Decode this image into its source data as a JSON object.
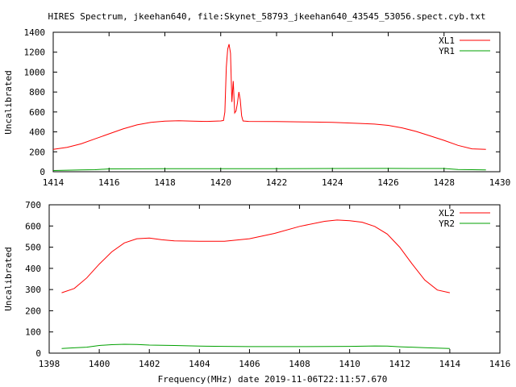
{
  "title": "HIRES Spectrum, jkeehan640, file:Skynet_58793_jkeehan640_43545_53056.spect.cyb.txt",
  "xlabel": "Frequency(MHz) date 2019-11-06T22:11:57.670",
  "colors": {
    "XL": "#ff0000",
    "YR": "#00a000"
  },
  "chart_data": [
    {
      "type": "line",
      "title": "",
      "xlabel": "",
      "ylabel": "Uncalibrated",
      "xlim": [
        1414,
        1430
      ],
      "ylim": [
        0,
        1400
      ],
      "xticks": [
        "1414",
        "1416",
        "1418",
        "1420",
        "1422",
        "1424",
        "1426",
        "1428",
        "1430"
      ],
      "yticks": [
        "0",
        "200",
        "400",
        "600",
        "800",
        "1000",
        "1200",
        "1400"
      ],
      "legend_position": "top-right",
      "grid": false,
      "series": [
        {
          "name": "XL1",
          "color": "#ff0000",
          "points": [
            [
              1414.0,
              225
            ],
            [
              1414.5,
              245
            ],
            [
              1415.0,
              280
            ],
            [
              1415.5,
              330
            ],
            [
              1416.0,
              380
            ],
            [
              1416.5,
              430
            ],
            [
              1417.0,
              470
            ],
            [
              1417.5,
              495
            ],
            [
              1418.0,
              508
            ],
            [
              1418.5,
              512
            ],
            [
              1419.0,
              508
            ],
            [
              1419.5,
              505
            ],
            [
              1420.0,
              510
            ],
            [
              1420.1,
              515
            ],
            [
              1420.15,
              600
            ],
            [
              1420.2,
              1050
            ],
            [
              1420.25,
              1230
            ],
            [
              1420.3,
              1280
            ],
            [
              1420.35,
              1190
            ],
            [
              1420.4,
              700
            ],
            [
              1420.45,
              910
            ],
            [
              1420.5,
              590
            ],
            [
              1420.55,
              610
            ],
            [
              1420.6,
              690
            ],
            [
              1420.65,
              800
            ],
            [
              1420.7,
              720
            ],
            [
              1420.75,
              560
            ],
            [
              1420.8,
              510
            ],
            [
              1421.0,
              505
            ],
            [
              1422.0,
              503
            ],
            [
              1423.0,
              500
            ],
            [
              1424.0,
              495
            ],
            [
              1425.0,
              485
            ],
            [
              1425.5,
              478
            ],
            [
              1426.0,
              465
            ],
            [
              1426.5,
              440
            ],
            [
              1427.0,
              405
            ],
            [
              1427.5,
              360
            ],
            [
              1428.0,
              315
            ],
            [
              1428.5,
              265
            ],
            [
              1429.0,
              230
            ],
            [
              1429.5,
              225
            ]
          ]
        },
        {
          "name": "YR1",
          "color": "#00a000",
          "points": [
            [
              1414.0,
              12
            ],
            [
              1415.0,
              18
            ],
            [
              1415.5,
              20
            ],
            [
              1416.0,
              28
            ],
            [
              1418.0,
              30
            ],
            [
              1420.0,
              30
            ],
            [
              1422.0,
              31
            ],
            [
              1424.0,
              32
            ],
            [
              1426.0,
              33
            ],
            [
              1428.0,
              32
            ],
            [
              1428.5,
              22
            ],
            [
              1429.5,
              18
            ]
          ]
        }
      ]
    },
    {
      "type": "line",
      "title": "",
      "xlabel": "Frequency(MHz) date 2019-11-06T22:11:57.670",
      "ylabel": "Uncalibrated",
      "xlim": [
        1398,
        1416
      ],
      "ylim": [
        0,
        700
      ],
      "xticks": [
        "1398",
        "1400",
        "1402",
        "1404",
        "1406",
        "1408",
        "1410",
        "1412",
        "1414",
        "1416"
      ],
      "yticks": [
        "0",
        "100",
        "200",
        "300",
        "400",
        "500",
        "600",
        "700"
      ],
      "legend_position": "top-right",
      "grid": false,
      "series": [
        {
          "name": "XL2",
          "color": "#ff0000",
          "points": [
            [
              1398.5,
              285
            ],
            [
              1399.0,
              305
            ],
            [
              1399.5,
              355
            ],
            [
              1400.0,
              420
            ],
            [
              1400.5,
              478
            ],
            [
              1401.0,
              520
            ],
            [
              1401.5,
              540
            ],
            [
              1402.0,
              543
            ],
            [
              1402.5,
              535
            ],
            [
              1403.0,
              530
            ],
            [
              1404.0,
              528
            ],
            [
              1405.0,
              528
            ],
            [
              1406.0,
              540
            ],
            [
              1407.0,
              565
            ],
            [
              1408.0,
              598
            ],
            [
              1409.0,
              622
            ],
            [
              1409.5,
              628
            ],
            [
              1410.0,
              625
            ],
            [
              1410.5,
              618
            ],
            [
              1411.0,
              598
            ],
            [
              1411.5,
              562
            ],
            [
              1412.0,
              500
            ],
            [
              1412.5,
              420
            ],
            [
              1413.0,
              345
            ],
            [
              1413.5,
              298
            ],
            [
              1414.0,
              285
            ]
          ]
        },
        {
          "name": "YR2",
          "color": "#00a000",
          "points": [
            [
              1398.5,
              22
            ],
            [
              1399.0,
              25
            ],
            [
              1399.5,
              28
            ],
            [
              1400.0,
              36
            ],
            [
              1400.5,
              40
            ],
            [
              1401.0,
              42
            ],
            [
              1401.5,
              41
            ],
            [
              1402.0,
              38
            ],
            [
              1403.0,
              36
            ],
            [
              1404.0,
              33
            ],
            [
              1405.0,
              32
            ],
            [
              1406.0,
              31
            ],
            [
              1408.0,
              31
            ],
            [
              1410.0,
              32
            ],
            [
              1411.0,
              34
            ],
            [
              1411.5,
              33
            ],
            [
              1412.0,
              30
            ],
            [
              1413.0,
              26
            ],
            [
              1414.0,
              22
            ]
          ]
        }
      ]
    }
  ]
}
